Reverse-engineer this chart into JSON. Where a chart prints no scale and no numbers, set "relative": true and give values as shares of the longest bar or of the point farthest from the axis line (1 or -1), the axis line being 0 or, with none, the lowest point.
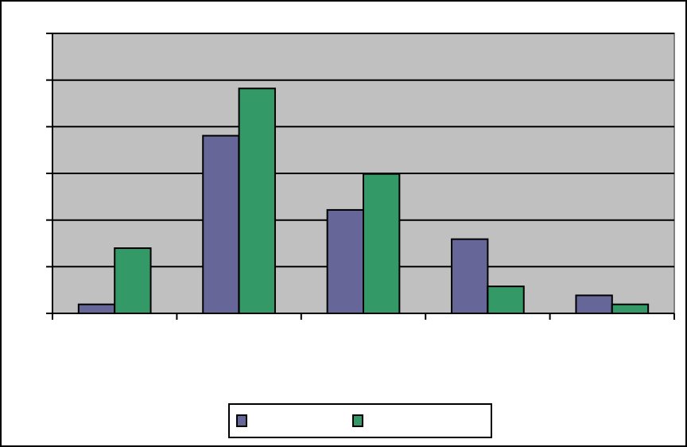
{
  "chart_data": {
    "type": "bar",
    "relative": true,
    "categories": [
      null,
      null,
      null,
      null,
      null
    ],
    "series": [
      {
        "color": "#666699",
        "values": [
          0.04,
          0.79,
          0.46,
          0.33,
          0.08
        ]
      },
      {
        "color": "#339966",
        "values": [
          0.29,
          1,
          0.62,
          0.12,
          0.04
        ]
      }
    ],
    "grid": "y"
  }
}
